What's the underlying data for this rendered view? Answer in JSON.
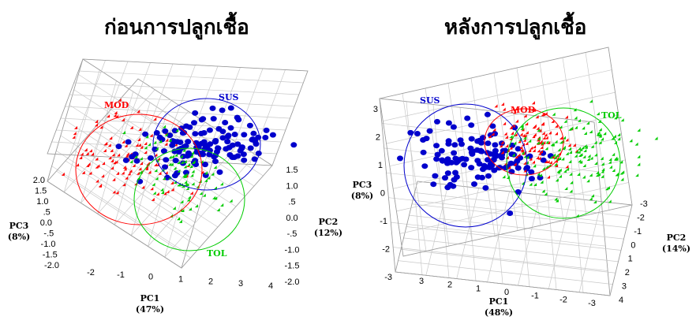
{
  "chart_data": [
    {
      "type": "scatter",
      "title": "ก่อนการปลูกเชื้อ",
      "axes": {
        "pc1": {
          "label": "PC1",
          "pct": "(47%)",
          "ticks": [
            "-2",
            "-1",
            "0",
            "1",
            "2",
            "3",
            "4"
          ]
        },
        "pc2": {
          "label": "PC2",
          "pct": "(12%)",
          "ticks": [
            "1.5",
            "1.0",
            ".5",
            "0.0",
            "-.5",
            "-1.0",
            "-1.5",
            "-2.0"
          ]
        },
        "pc3": {
          "label": "PC3",
          "pct": "(8%)",
          "ticks": [
            "2.0",
            "1.5",
            "1.0",
            ".5",
            "0.0",
            "-.5",
            "-1.0",
            "-1.5",
            "-2.0"
          ]
        }
      },
      "groups": [
        {
          "name": "MOD",
          "color": "#ff0000",
          "marker": "triangle"
        },
        {
          "name": "SUS",
          "color": "#0000cc",
          "marker": "circle"
        },
        {
          "name": "TOL",
          "color": "#00cc00",
          "marker": "diamond"
        }
      ],
      "grid": true
    },
    {
      "type": "scatter",
      "title": "หลังการปลูกเชื้อ",
      "axes": {
        "pc1": {
          "label": "PC1",
          "pct": "(48%)",
          "ticks": [
            "3",
            "2",
            "1",
            "0",
            "-1",
            "-2",
            "-3"
          ]
        },
        "pc2": {
          "label": "PC2",
          "pct": "(14%)",
          "ticks": [
            "-3",
            "-2",
            "-1",
            "0",
            "1",
            "2",
            "3",
            "4"
          ]
        },
        "pc3": {
          "label": "PC3",
          "pct": "(8%)",
          "ticks": [
            "3",
            "2",
            "1",
            "0",
            "-1",
            "-2",
            "-3"
          ]
        }
      },
      "groups": [
        {
          "name": "SUS",
          "color": "#0000cc",
          "marker": "circle"
        },
        {
          "name": "MOD",
          "color": "#ff0000",
          "marker": "triangle"
        },
        {
          "name": "TOL",
          "color": "#00cc00",
          "marker": "diamond"
        }
      ],
      "grid": true
    }
  ]
}
